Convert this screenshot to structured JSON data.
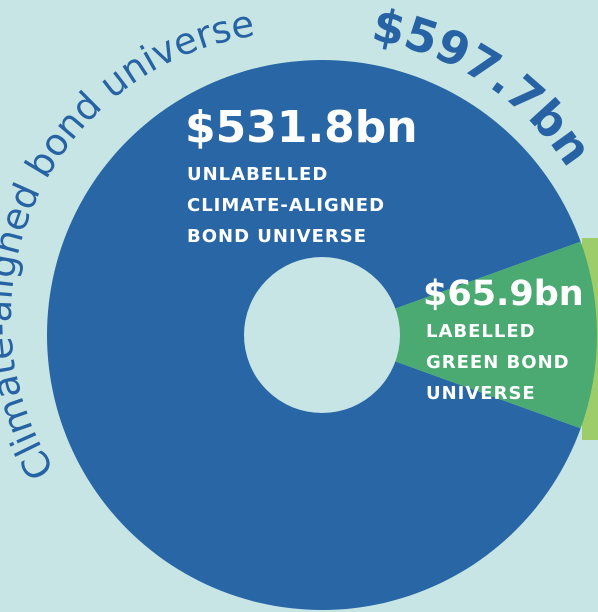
{
  "chart_data": {
    "type": "pie",
    "title": "Climate-aligned bond universe",
    "total_label": "$597.7bn",
    "slices": [
      {
        "value_label": "$531.8bn",
        "value": 531.8,
        "label_lines": [
          "UNLABELLED",
          "CLIMATE-ALIGNED",
          "BOND UNIVERSE"
        ],
        "color": "#2866a5"
      },
      {
        "value_label": "$65.9bn",
        "value": 65.9,
        "label_lines": [
          "LABELLED",
          "GREEN BOND",
          "UNIVERSE"
        ],
        "color": "#4aaa72"
      }
    ],
    "outer_ring_color": "#9dcc6a",
    "background": "#c6e5e4",
    "hole_color": "#c6e5e4"
  }
}
